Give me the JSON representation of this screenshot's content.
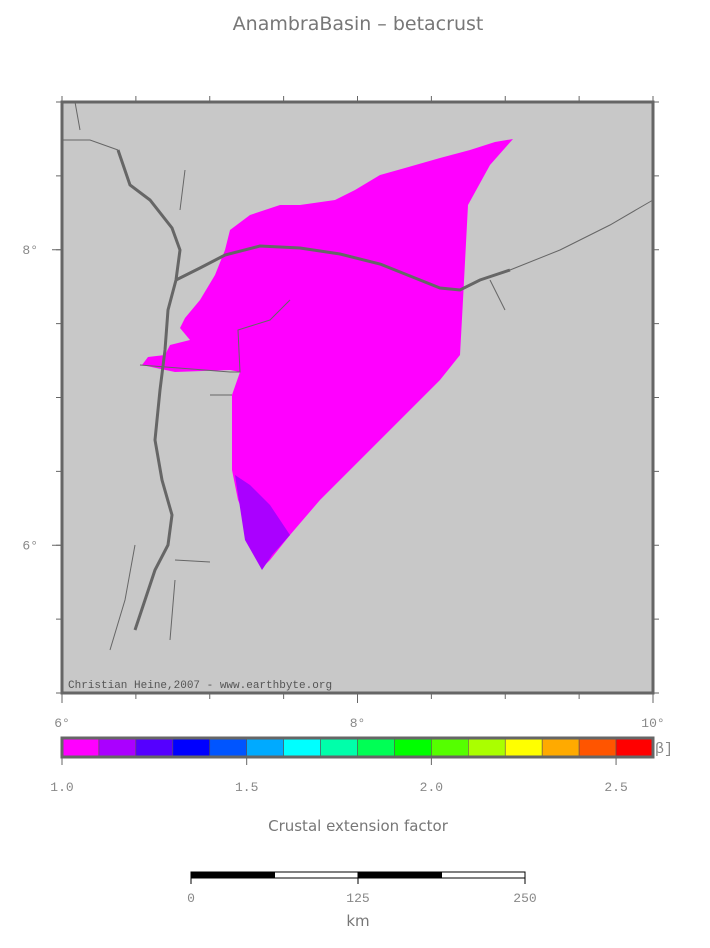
{
  "title": "AnambraBasin – betacrust",
  "map": {
    "credit": "Christian Heine,2007 - www.earthbyte.org",
    "xlim": [
      6,
      10
    ],
    "ylim": [
      5,
      9
    ],
    "xticks": [
      {
        "value": 6,
        "label": "6°"
      },
      {
        "value": 8,
        "label": "8°"
      },
      {
        "value": 10,
        "label": "10°"
      }
    ],
    "yticks": [
      {
        "value": 6,
        "label": "6°"
      },
      {
        "value": 8,
        "label": "8°"
      }
    ]
  },
  "colorbar": {
    "label": "Crustal extension factor",
    "unit": "[β]",
    "lim": [
      1.0,
      2.6
    ],
    "colors": [
      "#ff00ff",
      "#aa00ff",
      "#5500ff",
      "#0000ff",
      "#0055ff",
      "#00aaff",
      "#00ffff",
      "#00ffaa",
      "#00ff55",
      "#00ff00",
      "#55ff00",
      "#aaff00",
      "#ffff00",
      "#ffaa00",
      "#ff5500",
      "#ff0000"
    ],
    "ticks": [
      {
        "value": 1,
        "label": "1.0"
      },
      {
        "value": 1.5,
        "label": "1.5"
      },
      {
        "value": 2,
        "label": "2.0"
      },
      {
        "value": 2.5,
        "label": "2.5"
      }
    ]
  },
  "scalebar": {
    "unit": "km",
    "lim": [
      0,
      250
    ],
    "ticks": [
      0,
      125,
      250
    ]
  }
}
